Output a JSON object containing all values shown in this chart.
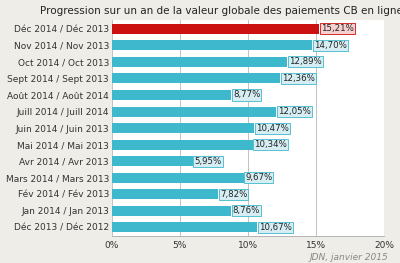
{
  "title": "Progression sur un an de la valeur globale des paiements CB en ligne mensuels",
  "categories": [
    "Déc 2013 / Déc 2012",
    "Jan 2014 / Jan 2013",
    "Fév 2014 / Fév 2013",
    "Mars 2014 / Mars 2013",
    "Avr 2014 / Avr 2013",
    "Mai 2014 / Mai 2013",
    "Juin 2014 / Juin 2013",
    "Juill 2014 / Juill 2014",
    "Août 2014 / Août 2014",
    "Sept 2014 / Sept 2013",
    "Oct 2014 / Oct 2013",
    "Nov 2014 / Nov 2013",
    "Déc 2014 / Déc 2013"
  ],
  "values": [
    10.67,
    8.76,
    7.82,
    9.67,
    5.95,
    10.34,
    10.47,
    12.05,
    8.77,
    12.36,
    12.89,
    14.7,
    15.21
  ],
  "labels": [
    "10,67%",
    "8,76%",
    "7,82%",
    "9,67%",
    "5,95%",
    "10,34%",
    "10,47%",
    "12,05%",
    "8,77%",
    "12,36%",
    "12,89%",
    "14,70%",
    "15,21%"
  ],
  "bar_colors": [
    "#3db8cc",
    "#3db8cc",
    "#3db8cc",
    "#3db8cc",
    "#3db8cc",
    "#3db8cc",
    "#3db8cc",
    "#3db8cc",
    "#3db8cc",
    "#3db8cc",
    "#3db8cc",
    "#3db8cc",
    "#cc1111"
  ],
  "label_box_facecolors": [
    "#d6eef3",
    "#d6eef3",
    "#d6eef3",
    "#d6eef3",
    "#d6eef3",
    "#d6eef3",
    "#d6eef3",
    "#d6eef3",
    "#d6eef3",
    "#d6eef3",
    "#d6eef3",
    "#d6eef3",
    "#f5d0d0"
  ],
  "label_edge_colors": [
    "#3db8cc",
    "#3db8cc",
    "#3db8cc",
    "#3db8cc",
    "#3db8cc",
    "#3db8cc",
    "#3db8cc",
    "#3db8cc",
    "#3db8cc",
    "#3db8cc",
    "#3db8cc",
    "#3db8cc",
    "#cc1111"
  ],
  "background_color": "#eeede8",
  "plot_bg_color": "#ffffff",
  "xlim": [
    0,
    20
  ],
  "xticks": [
    0,
    5,
    10,
    15,
    20
  ],
  "xtick_labels": [
    "0%",
    "5%",
    "10%",
    "15%",
    "20%"
  ],
  "watermark": "JDN, janvier 2015",
  "title_fontsize": 7.5,
  "tick_fontsize": 6.5,
  "label_fontsize": 6.2,
  "watermark_fontsize": 6.5
}
